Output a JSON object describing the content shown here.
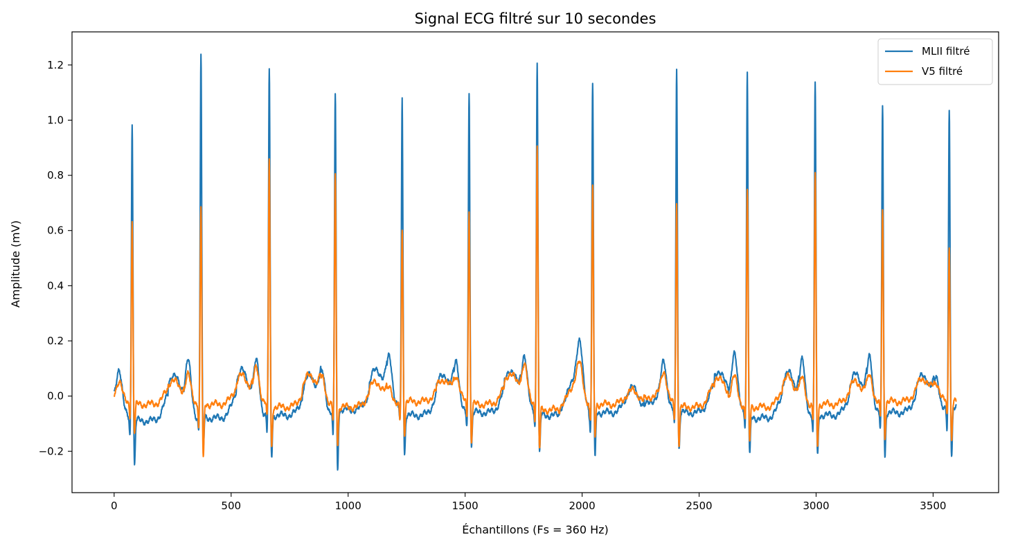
{
  "chart_data": {
    "type": "line",
    "title": "Signal ECG filtré sur 10 secondes",
    "xlabel": "Échantillons (Fs = 360 Hz)",
    "ylabel": "Amplitude (mV)",
    "xlim": [
      -180,
      3780
    ],
    "ylim": [
      -0.35,
      1.32
    ],
    "xticks": [
      0,
      500,
      1000,
      1500,
      2000,
      2500,
      3000,
      3500
    ],
    "xtick_labels": [
      "0",
      "500",
      "1000",
      "1500",
      "2000",
      "2500",
      "3000",
      "3500"
    ],
    "yticks": [
      -0.2,
      0.0,
      0.2,
      0.4,
      0.6,
      0.8,
      1.0,
      1.2
    ],
    "ytick_labels": [
      "−0.2",
      "0.0",
      "0.2",
      "0.4",
      "0.6",
      "0.8",
      "1.0",
      "1.2"
    ],
    "grid": false,
    "legend_position": "top-right",
    "n_samples": 3600,
    "series": [
      {
        "name": "MLII filtré",
        "color": "#1f77b4",
        "r_peak_samples": [
          77,
          371,
          663,
          945,
          1231,
          1517,
          1808,
          2045,
          2404,
          2706,
          2996,
          3284,
          3569
        ],
        "r_peak_values": [
          0.99,
          1.24,
          1.18,
          1.11,
          1.06,
          1.11,
          1.2,
          1.14,
          1.19,
          1.15,
          1.14,
          1.06,
          1.05
        ],
        "s_trough_values": [
          -0.26,
          -0.2,
          -0.23,
          -0.28,
          -0.22,
          -0.19,
          -0.22,
          -0.24,
          -0.2,
          -0.23,
          -0.23,
          -0.23,
          -0.22
        ],
        "baseline_values": [
          -0.09,
          -0.08,
          -0.07,
          -0.05,
          -0.07,
          -0.06,
          -0.07,
          -0.06,
          -0.06,
          -0.08,
          -0.07,
          -0.06,
          -0.04
        ],
        "t_wave_values": [
          0.03,
          0.05,
          0.04,
          0.05,
          0.04,
          0.05,
          0.03,
          0.03,
          0.05,
          0.04,
          0.04,
          0.05,
          0.02
        ],
        "p_wave_values": [
          0.05,
          0.1,
          0.1,
          0.08,
          0.09,
          0.11,
          0.1,
          0.08,
          0.1,
          0.09,
          0.1,
          0.12,
          0.07
        ]
      },
      {
        "name": "V5 filtré",
        "color": "#ff7f0e",
        "r_peak_samples": [
          77,
          371,
          663,
          945,
          1231,
          1517,
          1808,
          2045,
          2404,
          2706,
          2996,
          3284,
          3569
        ],
        "r_peak_values": [
          0.63,
          0.68,
          0.85,
          0.8,
          0.62,
          0.66,
          0.88,
          0.77,
          0.69,
          0.74,
          0.81,
          0.68,
          0.55
        ],
        "s_trough_values": [
          -0.14,
          -0.24,
          -0.19,
          -0.18,
          -0.14,
          -0.17,
          -0.2,
          -0.15,
          -0.18,
          -0.17,
          -0.18,
          -0.15,
          -0.16
        ],
        "baseline_values": [
          -0.03,
          -0.03,
          -0.04,
          -0.04,
          -0.02,
          -0.03,
          -0.05,
          -0.03,
          -0.04,
          -0.04,
          -0.03,
          -0.02,
          -0.02
        ],
        "t_wave_values": [
          0.04,
          0.05,
          0.05,
          0.04,
          0.04,
          0.05,
          0.03,
          0.02,
          0.05,
          0.05,
          0.04,
          0.05,
          0.03
        ],
        "p_wave_values": [
          0.04,
          0.06,
          0.07,
          0.05,
          0.05,
          0.05,
          0.07,
          0.05,
          0.06,
          0.05,
          0.06,
          0.08,
          0.04
        ]
      }
    ]
  }
}
